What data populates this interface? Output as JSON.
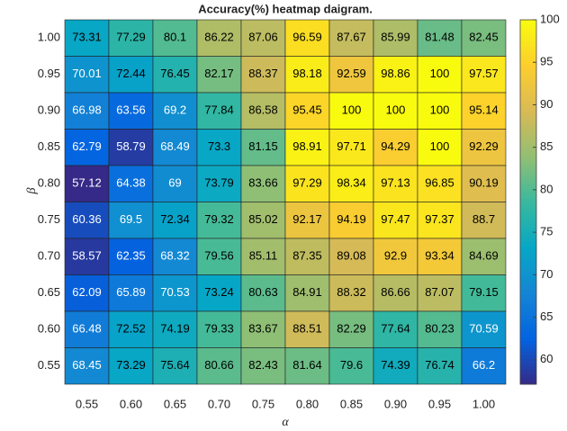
{
  "chart_data": {
    "type": "heatmap",
    "title": "Accuracy(%) heatmap daigram.",
    "xlabel": "α",
    "ylabel": "β",
    "x": [
      "0.55",
      "0.60",
      "0.65",
      "0.70",
      "0.75",
      "0.80",
      "0.85",
      "0.90",
      "0.95",
      "1.00"
    ],
    "y": [
      "1.00",
      "0.95",
      "0.90",
      "0.85",
      "0.80",
      "0.75",
      "0.70",
      "0.65",
      "0.60",
      "0.55"
    ],
    "values": [
      [
        73.31,
        77.29,
        80.1,
        86.22,
        87.06,
        96.59,
        87.67,
        85.99,
        81.48,
        82.45
      ],
      [
        70.01,
        72.44,
        76.45,
        82.17,
        88.37,
        98.18,
        92.59,
        98.86,
        100,
        97.57
      ],
      [
        66.98,
        63.56,
        69.2,
        77.84,
        86.58,
        95.45,
        100,
        100,
        100,
        95.14
      ],
      [
        62.79,
        58.79,
        68.49,
        73.3,
        81.15,
        98.91,
        97.71,
        94.29,
        100,
        92.29
      ],
      [
        57.12,
        64.38,
        69,
        73.79,
        83.66,
        97.29,
        98.34,
        97.13,
        96.85,
        90.19
      ],
      [
        60.36,
        69.5,
        72.34,
        79.32,
        85.02,
        92.17,
        94.19,
        97.47,
        97.37,
        88.7
      ],
      [
        58.57,
        62.35,
        68.32,
        79.56,
        85.11,
        87.35,
        89.08,
        92.9,
        93.34,
        84.69
      ],
      [
        62.09,
        65.89,
        70.53,
        73.24,
        80.63,
        84.91,
        88.32,
        86.66,
        87.07,
        79.15
      ],
      [
        66.48,
        72.52,
        74.19,
        79.33,
        83.67,
        88.51,
        82.29,
        77.64,
        80.23,
        70.59
      ],
      [
        68.45,
        73.29,
        75.64,
        80.66,
        82.43,
        81.64,
        79.6,
        74.39,
        76.74,
        66.2
      ]
    ],
    "colormap": "parula",
    "clim": [
      57.12,
      100
    ],
    "cticks": [
      60,
      65,
      70,
      75,
      80,
      85,
      90,
      95,
      100
    ]
  }
}
